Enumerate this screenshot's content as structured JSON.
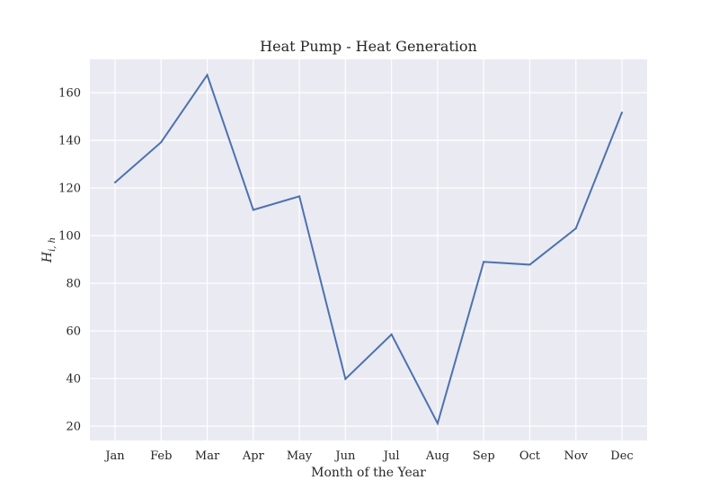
{
  "chart_data": {
    "type": "line",
    "title": "Heat Pump - Heat Generation",
    "xlabel": "Month of the Year",
    "ylabel": "H_{i,h}",
    "ylabel_main": "H",
    "ylabel_sub": "i, h",
    "categories": [
      "Jan",
      "Feb",
      "Mar",
      "Apr",
      "May",
      "Jun",
      "Jul",
      "Aug",
      "Sep",
      "Oct",
      "Nov",
      "Dec"
    ],
    "series": [
      {
        "values": [
          122.3,
          139.2,
          167.4,
          110.8,
          116.5,
          39.8,
          58.5,
          21.2,
          89.0,
          87.8,
          103.0,
          151.7
        ],
        "color": "#4c72b0"
      }
    ],
    "yticks": [
      20,
      40,
      60,
      80,
      100,
      120,
      140,
      160
    ],
    "ylim": [
      14,
      174
    ],
    "grid": true,
    "background_color": "#eaeaf2",
    "grid_color": "#ffffff"
  }
}
